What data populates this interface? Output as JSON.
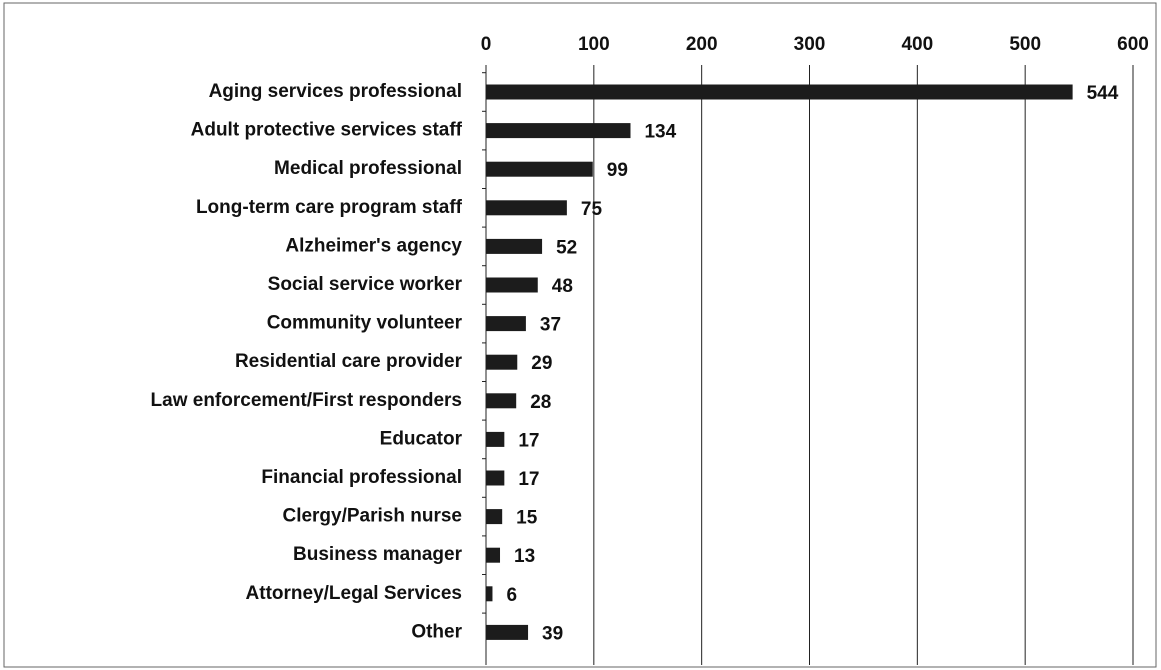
{
  "chart_data": {
    "type": "bar",
    "orientation": "horizontal",
    "categories": [
      "Aging services professional",
      "Adult protective services staff",
      "Medical professional",
      "Long-term care program staff",
      "Alzheimer's agency",
      "Social service worker",
      "Community volunteer",
      "Residential care provider",
      "Law enforcement/First responders",
      "Educator",
      "Financial professional",
      "Clergy/Parish nurse",
      "Business manager",
      "Attorney/Legal Services",
      "Other"
    ],
    "values": [
      544,
      134,
      99,
      75,
      52,
      48,
      37,
      29,
      28,
      17,
      17,
      15,
      13,
      6,
      39
    ],
    "color": "#1c1c1c",
    "xlim": [
      0,
      600
    ],
    "xticks": [
      0,
      100,
      200,
      300,
      400,
      500,
      600
    ],
    "grid": true
  }
}
